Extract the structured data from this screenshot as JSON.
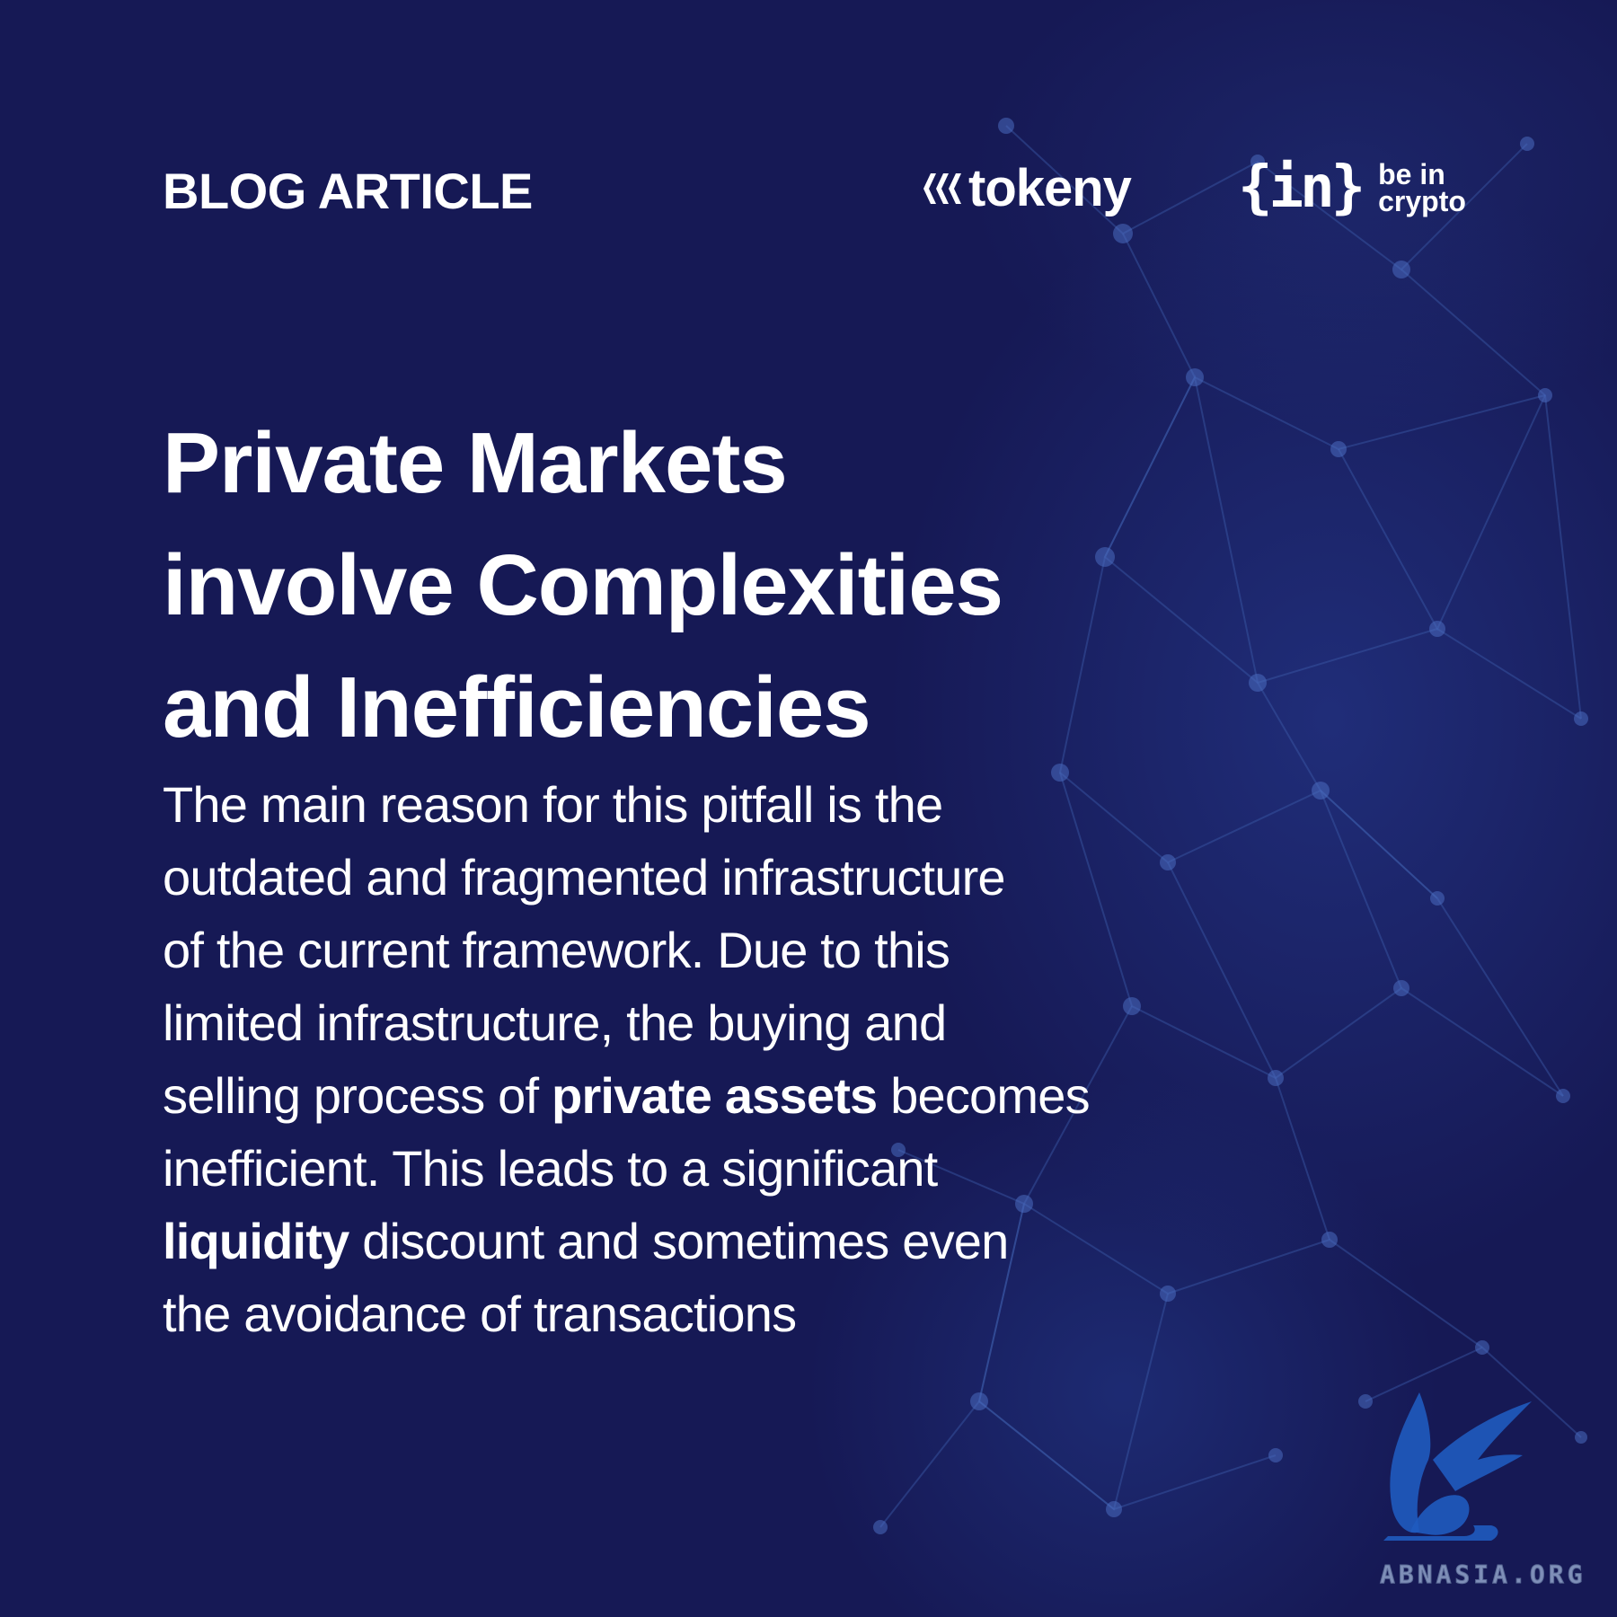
{
  "header": {
    "label": "BLOG ARTICLE",
    "logo_tokeny": "tokeny",
    "logo_bic_mark": "{in}",
    "logo_bic_line1": "be in",
    "logo_bic_line2": "crypto"
  },
  "title": {
    "line1": "Private Markets",
    "line2": "involve Complexities",
    "line3": "and Inefficiencies"
  },
  "body": {
    "line1": "The main reason for this pitfall is the",
    "line2": "outdated and fragmented infrastructure",
    "line3": "of the current framework. Due to this",
    "line4": "limited infrastructure, the buying and",
    "line5_pre": "selling process of ",
    "line5_bold": "private assets",
    "line5_post": " becomes",
    "line6": "inefficient. This leads to a significant",
    "line7_bold": "liquidity",
    "line7_post": " discount and sometimes even",
    "line8": "the avoidance of transactions"
  },
  "watermark": {
    "text": "ABNASIA.ORG"
  },
  "colors": {
    "background": "#161955",
    "text": "#ffffff",
    "network": "#3c5aa8",
    "watermark_logo": "#1f5bbf"
  }
}
